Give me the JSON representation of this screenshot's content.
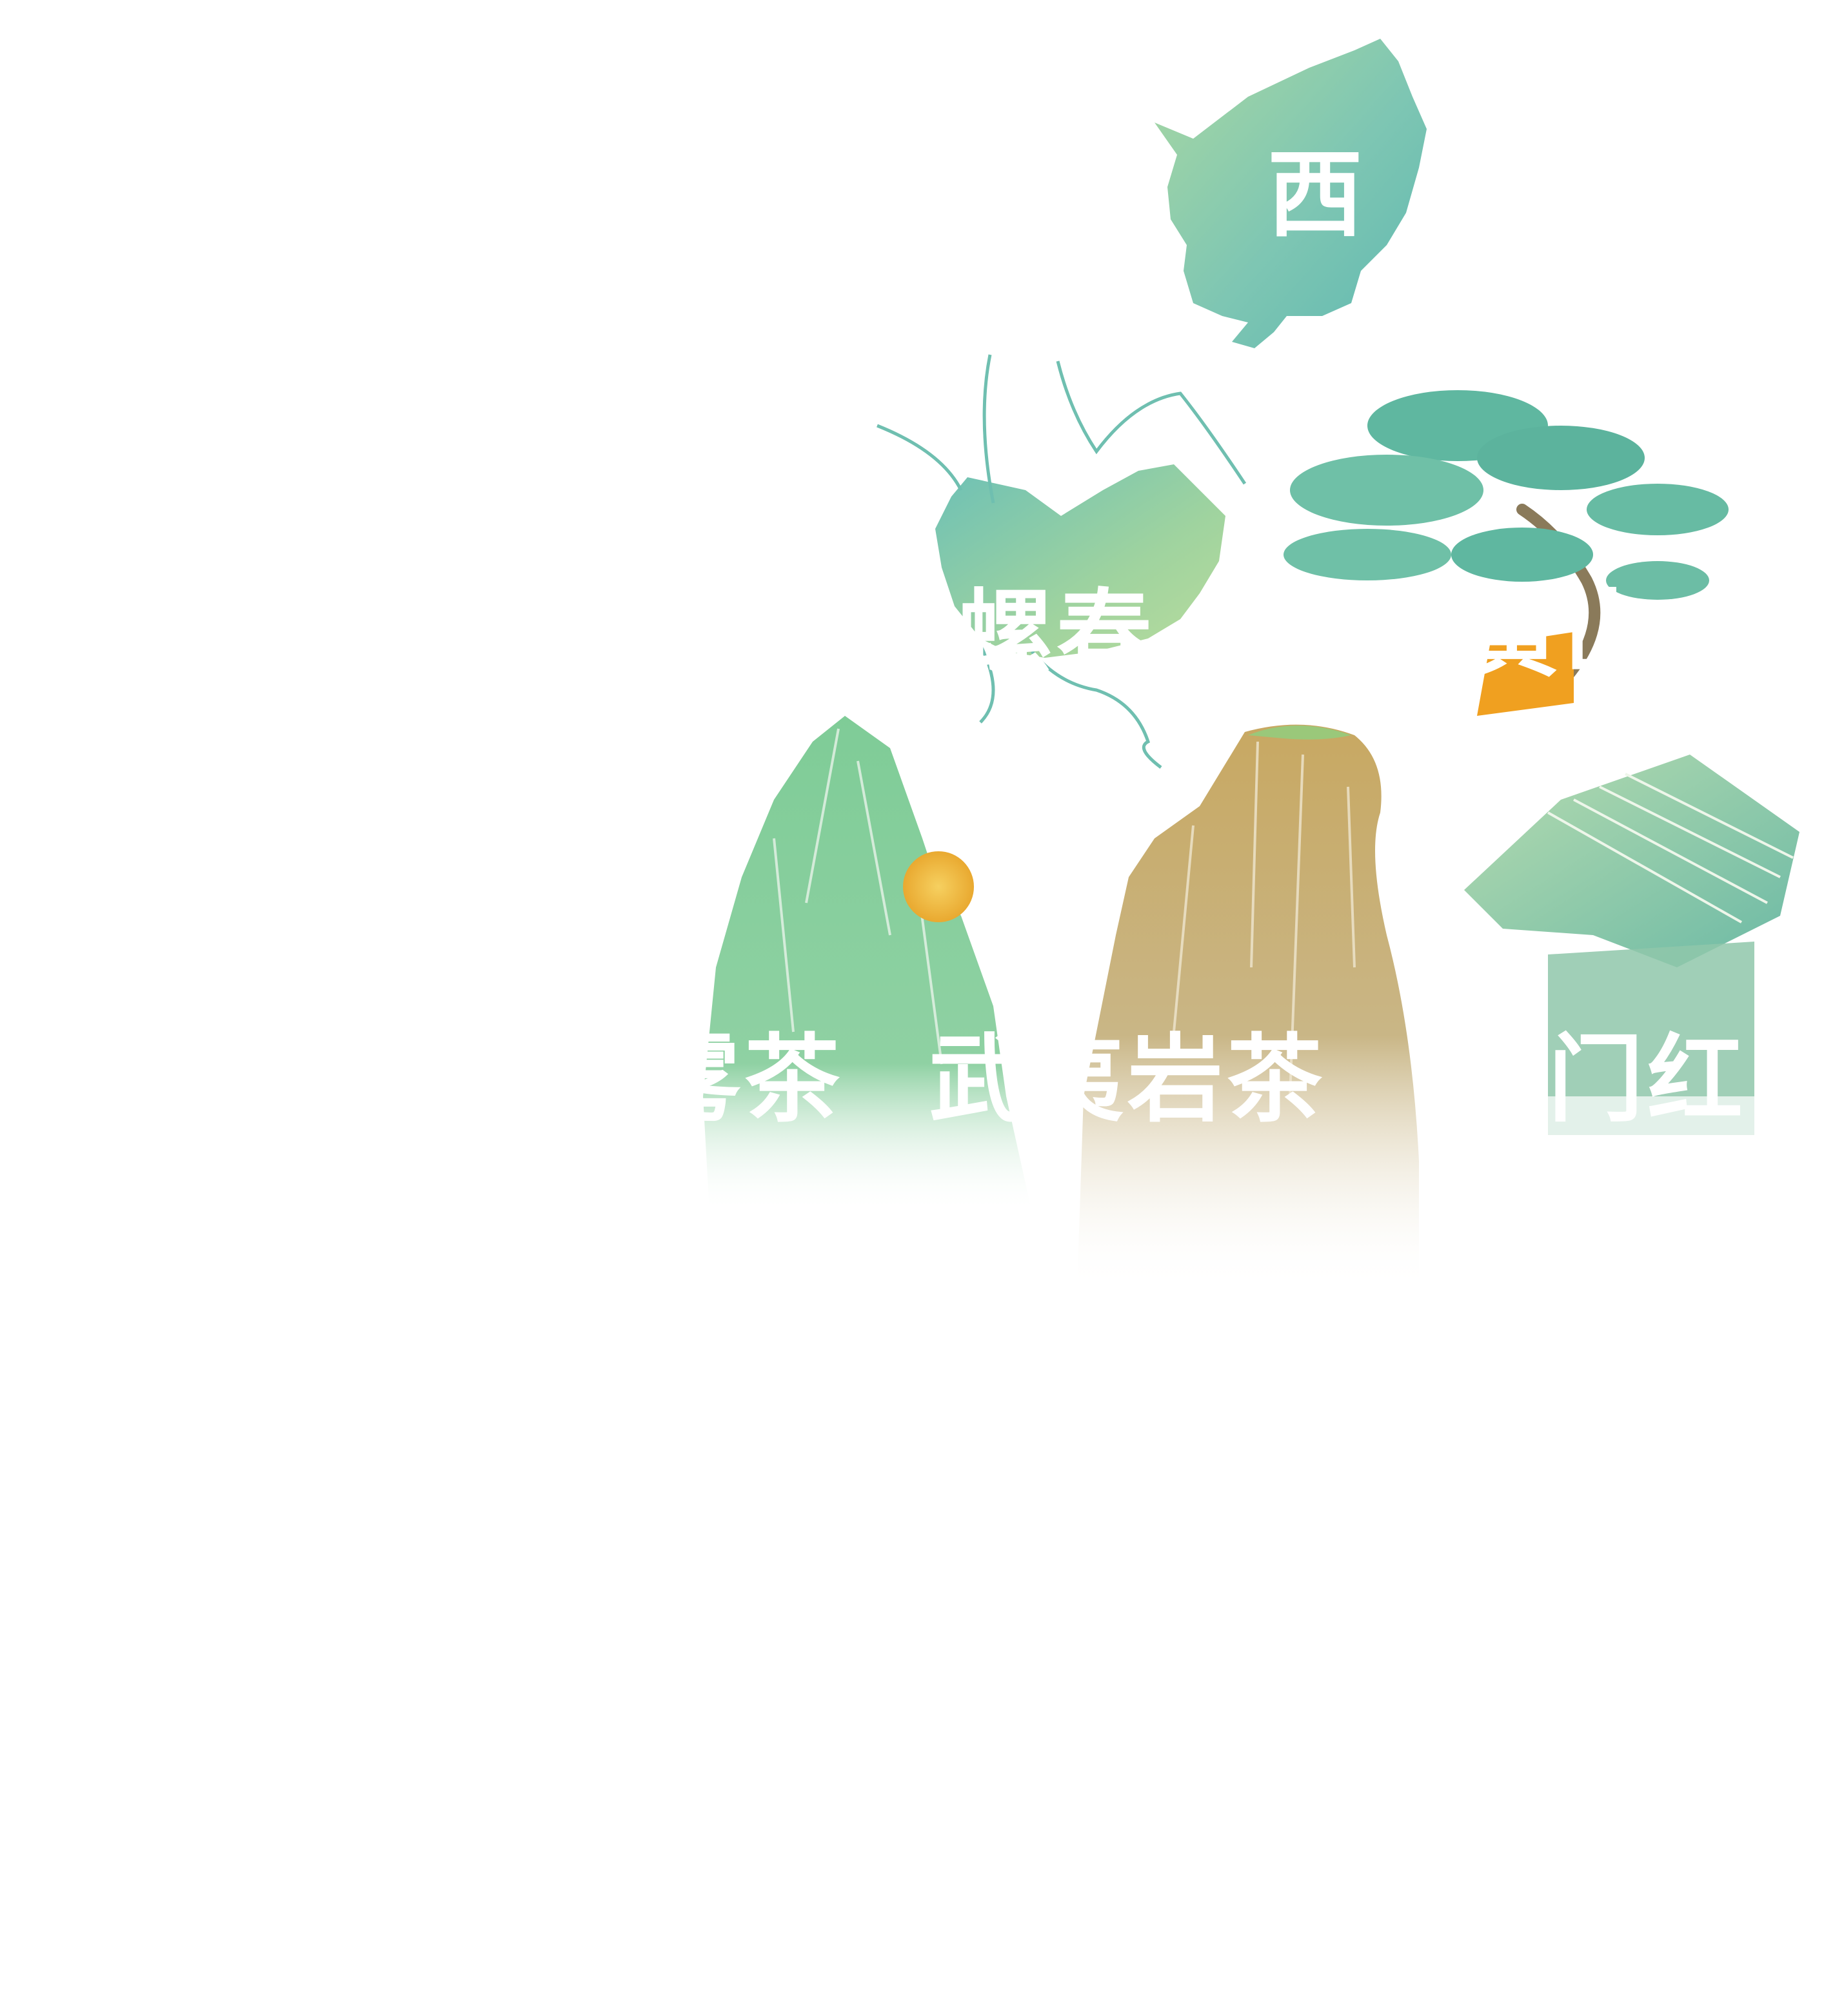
{
  "labels": {
    "xihu": "西",
    "biluochun": "碧螺春",
    "huangshan": "黄山",
    "maofeng_partial": "雾茶",
    "wuyi": "武夷岩茶",
    "qimen": "门红"
  },
  "illustrations": [
    "west-lake-map",
    "lake-taihu-map",
    "huangshan-pine",
    "green-mountain-peak",
    "wuyi-cliff",
    "qimen-pavilion"
  ],
  "colors": {
    "teal": "#6fbfb0",
    "green": "#8fcf9a",
    "sand": "#c9b37e",
    "orange": "#f0a020",
    "sun": "#f3c040",
    "white": "#ffffff"
  }
}
